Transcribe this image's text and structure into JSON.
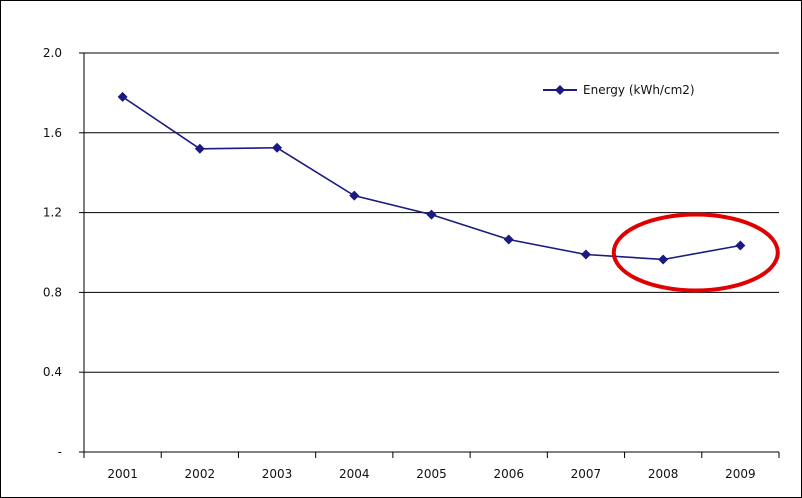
{
  "chart_data": {
    "type": "line",
    "title": "",
    "xlabel": "",
    "ylabel": "",
    "categories": [
      "2001",
      "2002",
      "2003",
      "2004",
      "2005",
      "2006",
      "2007",
      "2008",
      "2009"
    ],
    "series": [
      {
        "name": "Energy (kWh/cm2)",
        "values": [
          1.78,
          1.52,
          1.525,
          1.285,
          1.19,
          1.065,
          0.99,
          0.965,
          1.035
        ],
        "color": "#1a1a80"
      }
    ],
    "ylim": [
      0,
      2.0
    ],
    "yticks": [
      {
        "value": 0,
        "label": "-"
      },
      {
        "value": 0.4,
        "label": "0.4"
      },
      {
        "value": 0.8,
        "label": "0.8"
      },
      {
        "value": 1.2,
        "label": "1.2"
      },
      {
        "value": 1.6,
        "label": "1.6"
      },
      {
        "value": 2.0,
        "label": "2.0"
      }
    ],
    "grid": "horizontal",
    "legend": {
      "placement": "top-right"
    },
    "annotation": {
      "type": "ellipse",
      "color": "#e00000",
      "highlights": [
        "2008",
        "2009"
      ]
    }
  }
}
